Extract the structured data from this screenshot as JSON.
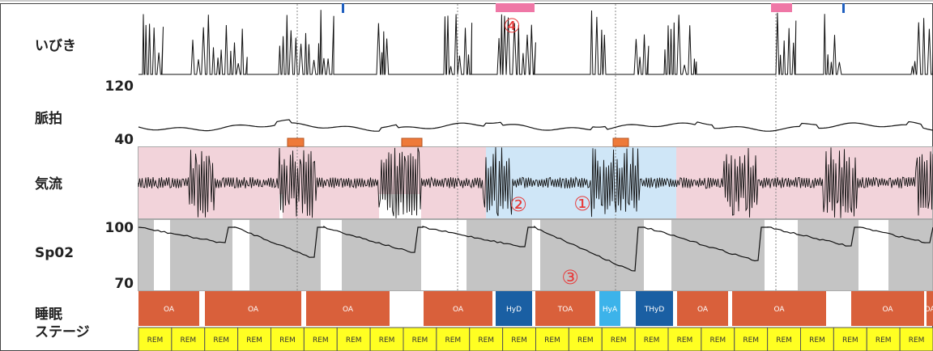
{
  "channels": {
    "snore": "いびき",
    "pulse": "脈拍",
    "airflow": "気流",
    "spo2": "Sp02",
    "stage_line1": "睡眠",
    "stage_line2": "ステージ"
  },
  "scales": {
    "pulse_max": "120",
    "pulse_min": "40",
    "spo2_max": "100",
    "spo2_min": "70"
  },
  "markers": {
    "m1": "①",
    "m2": "②",
    "m3": "③",
    "m4": "④"
  },
  "colors": {
    "apnea_pink": "#f2d3da",
    "hypopnea_blue": "#cfe6f7",
    "spo2_gray": "#c4c4c4",
    "event_orange": "#d9603b",
    "event_darkblue": "#1a5fa3",
    "event_lightblue": "#3cb3ea",
    "sleep_yellow": "#ffff22",
    "flag_pink": "#ef77a6",
    "bar_orange": "#ee7a3a",
    "marker_red": "#e83a3a"
  },
  "chart_data": {
    "type": "polysomnography",
    "respiratory_events": [
      {
        "label": "OA",
        "kind": "OA"
      },
      {
        "label": "OA",
        "kind": "OA"
      },
      {
        "label": "OA",
        "kind": "OA"
      },
      {
        "label": "OA",
        "kind": "OA"
      },
      {
        "label": "HyD",
        "kind": "HyD"
      },
      {
        "label": "TOA",
        "kind": "TOA"
      },
      {
        "label": "HyA",
        "kind": "HyA"
      },
      {
        "label": "THyD",
        "kind": "THyD"
      },
      {
        "label": "OA",
        "kind": "OA"
      },
      {
        "label": "OA",
        "kind": "OA"
      },
      {
        "label": "OA",
        "kind": "OA"
      },
      {
        "label": "OA",
        "kind": "OA"
      }
    ],
    "sleep_stages": [
      "REM",
      "REM",
      "REM",
      "REM",
      "REM",
      "REM",
      "REM",
      "REM",
      "REM",
      "REM",
      "REM",
      "REM",
      "REM",
      "REM",
      "REM",
      "REM",
      "REM",
      "REM",
      "REM",
      "REM",
      "REM",
      "REM",
      "REM",
      "REM"
    ]
  }
}
